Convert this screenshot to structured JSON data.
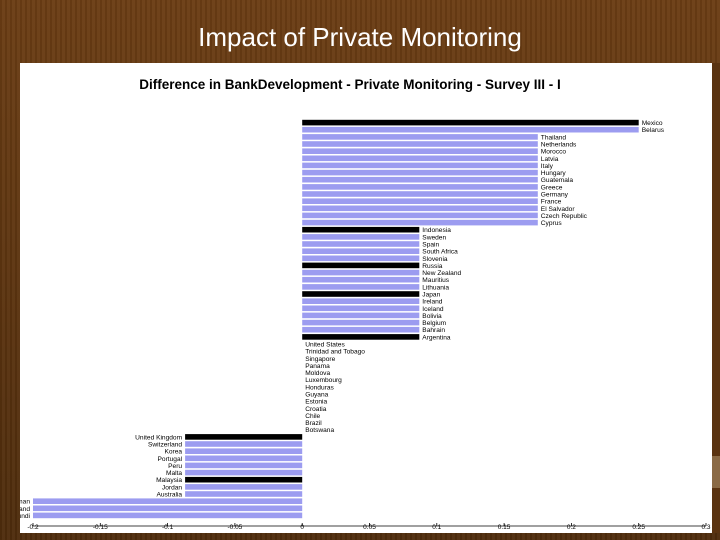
{
  "slide": {
    "title": "Impact of Private Monitoring"
  },
  "chart_data": {
    "type": "bar",
    "orientation": "horizontal",
    "title": "Difference in BankDevelopment - Private Monitoring - Survey III - I",
    "xlim": [
      -0.2,
      0.3
    ],
    "x_ticks": [
      "-0.2",
      "-0.15",
      "-0.1",
      "-0.05",
      "0",
      "0.05",
      "0.1",
      "0.15",
      "0.2",
      "0.25",
      "0.3"
    ],
    "x_tick_values": [
      -0.2,
      -0.15,
      -0.1,
      -0.05,
      0,
      0.05,
      0.1,
      0.15,
      0.2,
      0.25,
      0.3
    ],
    "bar_color": "#9c9cf0",
    "highlight_color": "#000000",
    "grid": false,
    "categories": [
      {
        "name": "Mexico",
        "value": 0.25,
        "highlight": true
      },
      {
        "name": "Belarus",
        "value": 0.25,
        "highlight": false
      },
      {
        "name": "Thailand",
        "value": 0.175,
        "highlight": false
      },
      {
        "name": "Netherlands",
        "value": 0.175,
        "highlight": false
      },
      {
        "name": "Morocco",
        "value": 0.175,
        "highlight": false
      },
      {
        "name": "Latvia",
        "value": 0.175,
        "highlight": false
      },
      {
        "name": "Italy",
        "value": 0.175,
        "highlight": false
      },
      {
        "name": "Hungary",
        "value": 0.175,
        "highlight": false
      },
      {
        "name": "Guatemala",
        "value": 0.175,
        "highlight": false
      },
      {
        "name": "Greece",
        "value": 0.175,
        "highlight": false
      },
      {
        "name": "Germany",
        "value": 0.175,
        "highlight": false
      },
      {
        "name": "France",
        "value": 0.175,
        "highlight": false
      },
      {
        "name": "El Salvador",
        "value": 0.175,
        "highlight": false
      },
      {
        "name": "Czech Republic",
        "value": 0.175,
        "highlight": false
      },
      {
        "name": "Cyprus",
        "value": 0.175,
        "highlight": false
      },
      {
        "name": "Indonesia",
        "value": 0.087,
        "highlight": true
      },
      {
        "name": "Sweden",
        "value": 0.087,
        "highlight": false
      },
      {
        "name": "Spain",
        "value": 0.087,
        "highlight": false
      },
      {
        "name": "South Africa",
        "value": 0.087,
        "highlight": false
      },
      {
        "name": "Slovenia",
        "value": 0.087,
        "highlight": false
      },
      {
        "name": "Russia",
        "value": 0.087,
        "highlight": true
      },
      {
        "name": "New Zealand",
        "value": 0.087,
        "highlight": false
      },
      {
        "name": "Mauritius",
        "value": 0.087,
        "highlight": false
      },
      {
        "name": "Lithuania",
        "value": 0.087,
        "highlight": false
      },
      {
        "name": "Japan",
        "value": 0.087,
        "highlight": true
      },
      {
        "name": "Ireland",
        "value": 0.087,
        "highlight": false
      },
      {
        "name": "Iceland",
        "value": 0.087,
        "highlight": false
      },
      {
        "name": "Bolivia",
        "value": 0.087,
        "highlight": false
      },
      {
        "name": "Belgium",
        "value": 0.087,
        "highlight": false
      },
      {
        "name": "Bahrain",
        "value": 0.087,
        "highlight": false
      },
      {
        "name": "Argentina",
        "value": 0.087,
        "highlight": true
      },
      {
        "name": "United States",
        "value": 0.0,
        "highlight": false
      },
      {
        "name": "Trinidad and Tobago",
        "value": 0.0,
        "highlight": false
      },
      {
        "name": "Singapore",
        "value": 0.0,
        "highlight": false
      },
      {
        "name": "Panama",
        "value": 0.0,
        "highlight": false
      },
      {
        "name": "Moldova",
        "value": 0.0,
        "highlight": false
      },
      {
        "name": "Luxembourg",
        "value": 0.0,
        "highlight": false
      },
      {
        "name": "Honduras",
        "value": 0.0,
        "highlight": false
      },
      {
        "name": "Guyana",
        "value": 0.0,
        "highlight": false
      },
      {
        "name": "Estonia",
        "value": 0.0,
        "highlight": false
      },
      {
        "name": "Croatia",
        "value": 0.0,
        "highlight": false
      },
      {
        "name": "Chile",
        "value": 0.0,
        "highlight": false
      },
      {
        "name": "Brazil",
        "value": 0.0,
        "highlight": false
      },
      {
        "name": "Botswana",
        "value": 0.0,
        "highlight": false
      },
      {
        "name": "United Kingdom",
        "value": -0.087,
        "highlight": true
      },
      {
        "name": "Switzerland",
        "value": -0.087,
        "highlight": false
      },
      {
        "name": "Korea",
        "value": -0.087,
        "highlight": false
      },
      {
        "name": "Portugal",
        "value": -0.087,
        "highlight": false
      },
      {
        "name": "Peru",
        "value": -0.087,
        "highlight": false
      },
      {
        "name": "Malta",
        "value": -0.087,
        "highlight": false
      },
      {
        "name": "Malaysia",
        "value": -0.087,
        "highlight": true
      },
      {
        "name": "Jordan",
        "value": -0.087,
        "highlight": false
      },
      {
        "name": "Australia",
        "value": -0.087,
        "highlight": false
      },
      {
        "name": "Oman",
        "value": -0.2,
        "highlight": false
      },
      {
        "name": "Finland",
        "value": -0.2,
        "highlight": false
      },
      {
        "name": "Burundi",
        "value": -0.2,
        "highlight": false
      }
    ]
  }
}
